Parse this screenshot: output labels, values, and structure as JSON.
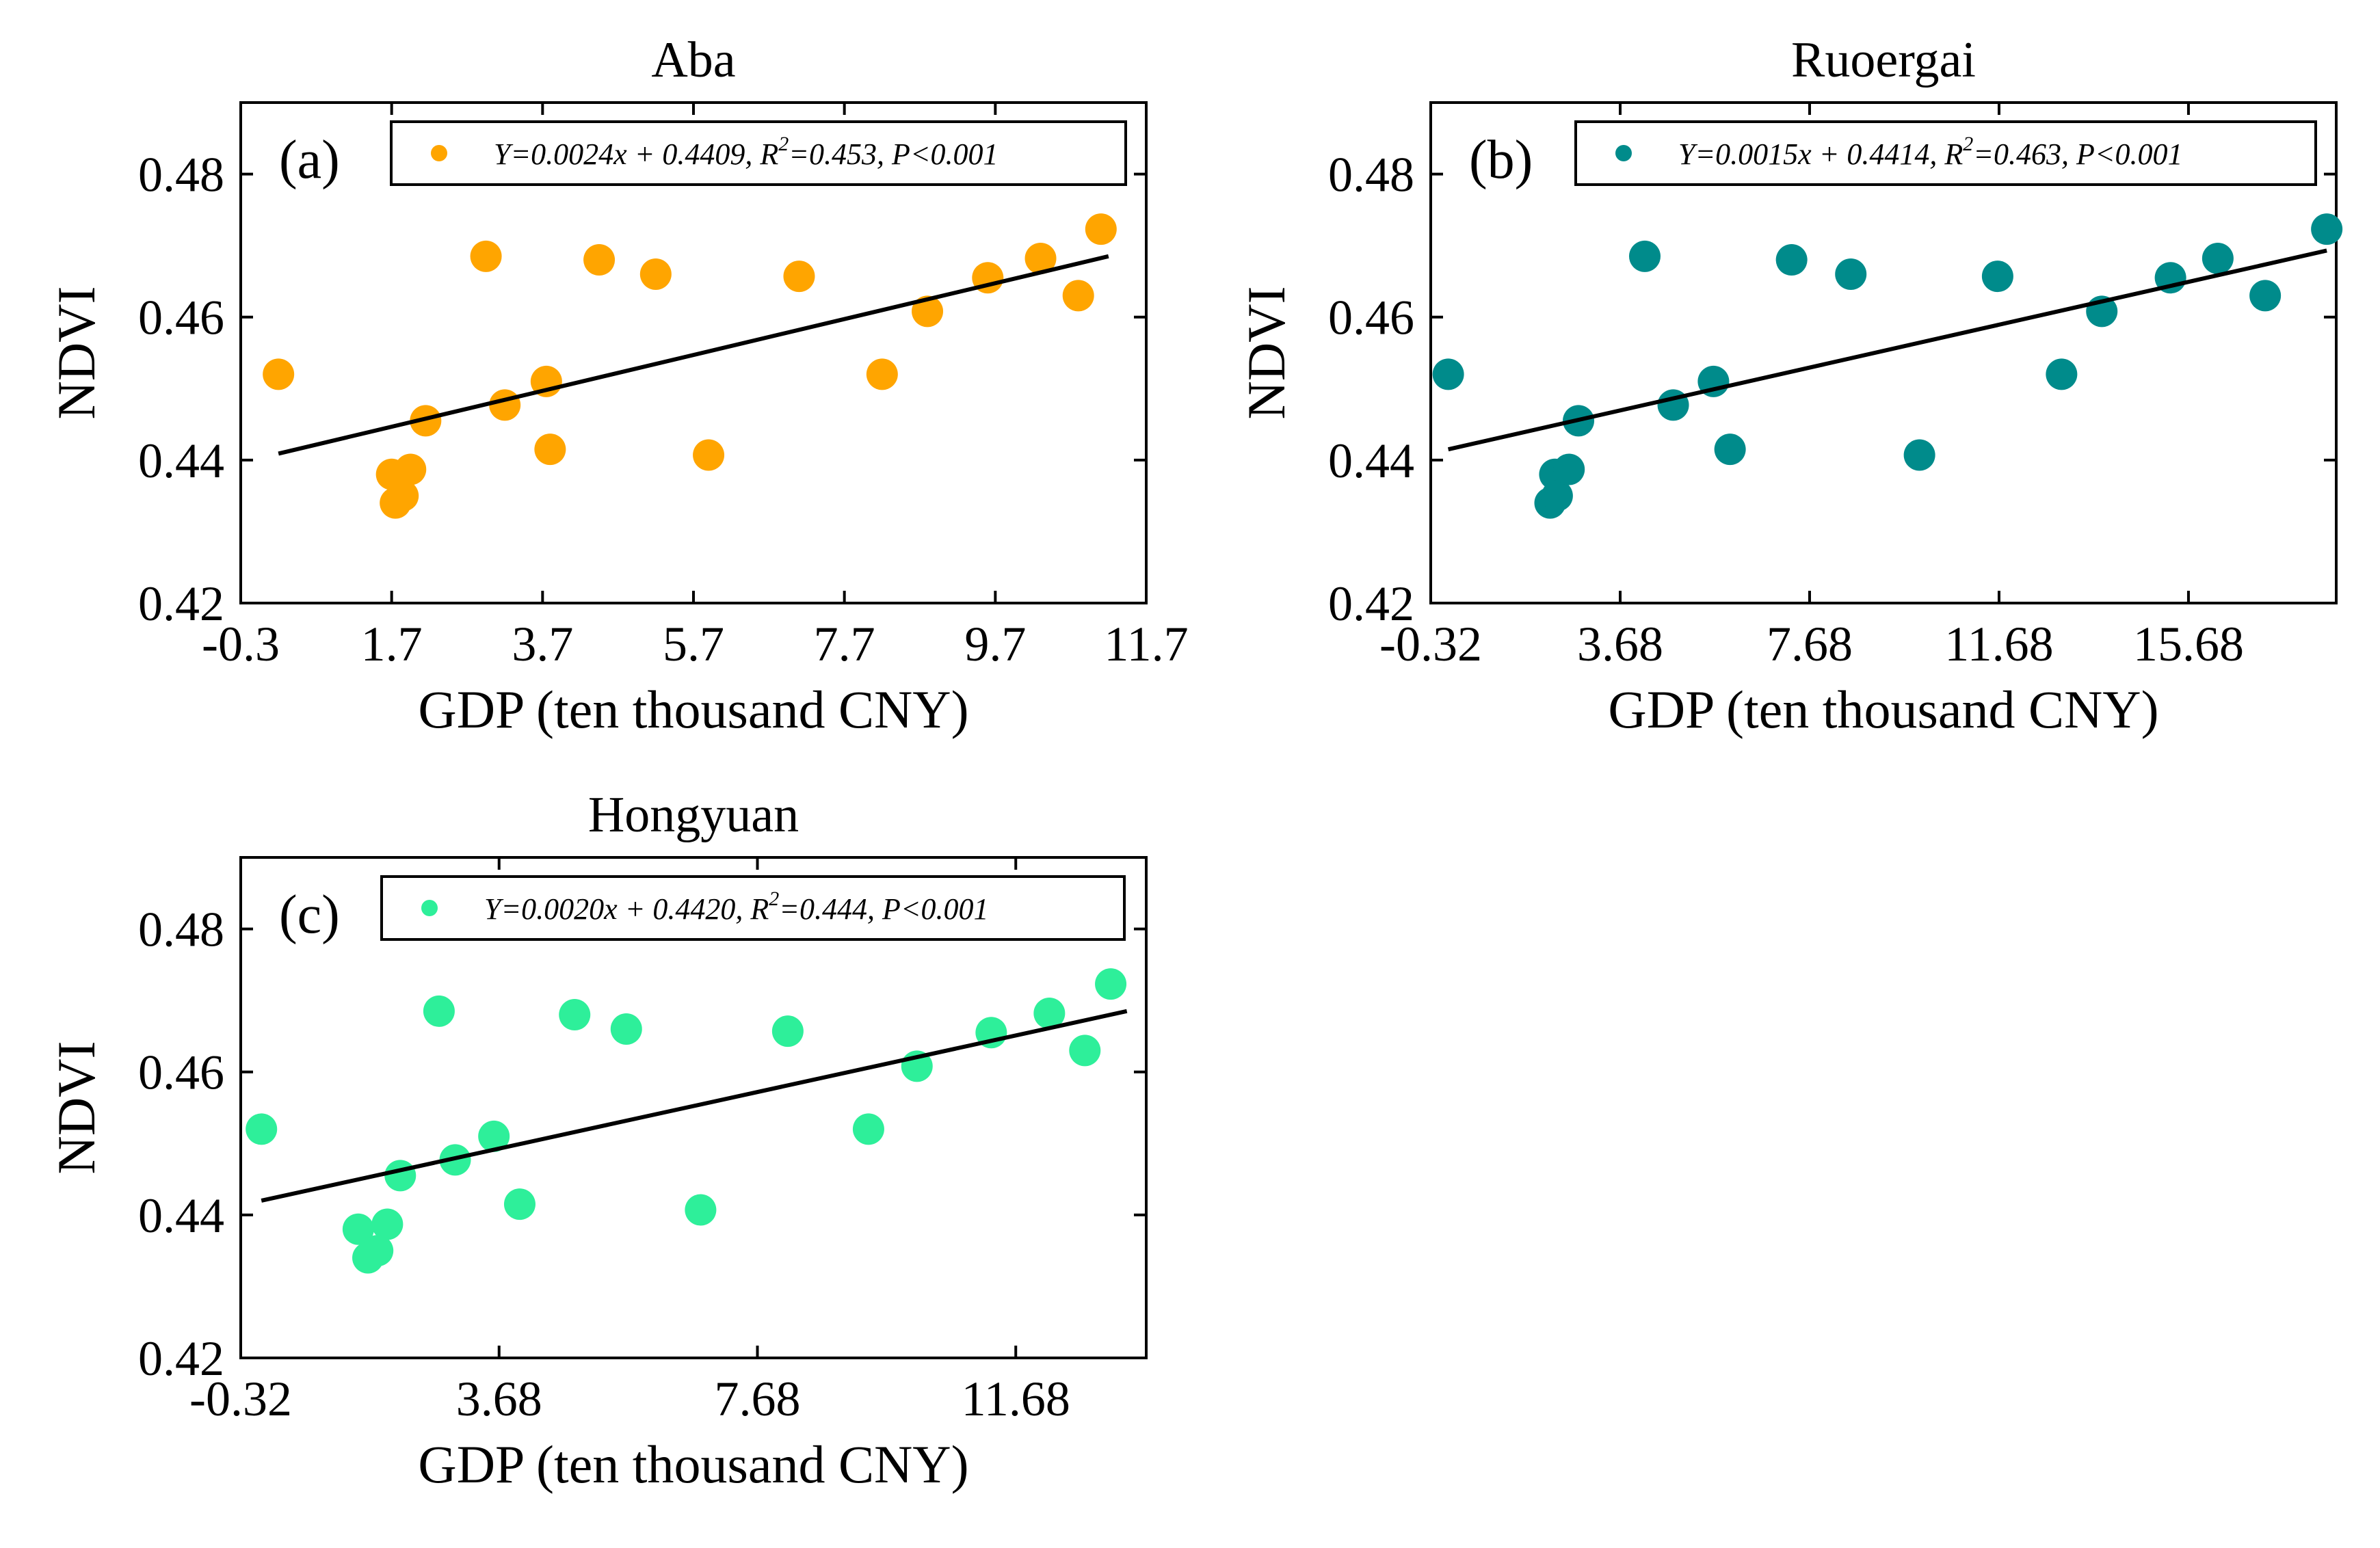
{
  "chart_data": [
    {
      "type": "scatter",
      "panel_label": "(a)",
      "title": "Aba",
      "xlabel": "GDP (ten thousand CNY)",
      "ylabel": "NDVI",
      "xlim": [
        -0.3,
        11.7
      ],
      "ylim": [
        0.42,
        0.49
      ],
      "xticks": [
        -0.3,
        1.7,
        3.7,
        5.7,
        7.7,
        9.7,
        11.7
      ],
      "xtick_labels": [
        "-0.3",
        "1.7",
        "3.7",
        "5.7",
        "7.7",
        "9.7",
        "11.7"
      ],
      "yticks": [
        0.42,
        0.44,
        0.46,
        0.48
      ],
      "ytick_labels": [
        "0.42",
        "0.44",
        "0.46",
        "0.48"
      ],
      "color": "#FFA500",
      "legend_location": "top-right",
      "legend": {
        "eq_prefix": "Y=0.0024x + 0.4409, R",
        "sup": "2",
        "eq_suffix": "=0.453, P<0.001"
      },
      "fit": {
        "slope": 0.0024,
        "intercept": 0.4409,
        "x_range": [
          0.2,
          11.2
        ],
        "y_range": [
          0.4409,
          0.4685
        ]
      },
      "points": [
        {
          "x": 0.2,
          "y": 0.452
        },
        {
          "x": 1.7,
          "y": 0.438
        },
        {
          "x": 1.75,
          "y": 0.434
        },
        {
          "x": 1.85,
          "y": 0.435
        },
        {
          "x": 1.95,
          "y": 0.4387
        },
        {
          "x": 2.15,
          "y": 0.4455
        },
        {
          "x": 2.95,
          "y": 0.4685
        },
        {
          "x": 3.2,
          "y": 0.4477
        },
        {
          "x": 3.75,
          "y": 0.451
        },
        {
          "x": 3.8,
          "y": 0.4415
        },
        {
          "x": 4.45,
          "y": 0.468
        },
        {
          "x": 5.2,
          "y": 0.466
        },
        {
          "x": 5.9,
          "y": 0.4407
        },
        {
          "x": 7.1,
          "y": 0.4657
        },
        {
          "x": 8.2,
          "y": 0.452
        },
        {
          "x": 8.8,
          "y": 0.4608
        },
        {
          "x": 9.6,
          "y": 0.4655
        },
        {
          "x": 10.3,
          "y": 0.4682
        },
        {
          "x": 10.8,
          "y": 0.463
        },
        {
          "x": 11.1,
          "y": 0.4723
        }
      ]
    },
    {
      "type": "scatter",
      "panel_label": "(b)",
      "title": "Ruoergai",
      "xlabel": "GDP (ten thousand CNY)",
      "ylabel": "NDVI",
      "xlim": [
        -0.32,
        18.8
      ],
      "ylim": [
        0.42,
        0.49
      ],
      "xticks": [
        -0.32,
        3.68,
        7.68,
        11.68,
        15.68
      ],
      "xtick_labels": [
        "-0.32",
        "3.68",
        "7.68",
        "11.68",
        "15.68"
      ],
      "yticks": [
        0.42,
        0.44,
        0.46,
        0.48
      ],
      "ytick_labels": [
        "0.42",
        "0.44",
        "0.46",
        "0.48"
      ],
      "color": "#008B8B",
      "legend_location": "top-right",
      "legend": {
        "eq_prefix": "Y=0.0015x + 0.4414, R",
        "sup": "2",
        "eq_suffix": "=0.463, P<0.001"
      },
      "fit": {
        "slope": 0.0015,
        "intercept": 0.4414,
        "x_range": [
          0.05,
          18.6
        ],
        "y_range": [
          0.4415,
          0.4693
        ]
      },
      "points": [
        {
          "x": 0.05,
          "y": 0.452
        },
        {
          "x": 2.2,
          "y": 0.434
        },
        {
          "x": 2.3,
          "y": 0.438
        },
        {
          "x": 2.35,
          "y": 0.435
        },
        {
          "x": 2.6,
          "y": 0.4387
        },
        {
          "x": 2.8,
          "y": 0.4455
        },
        {
          "x": 4.2,
          "y": 0.4685
        },
        {
          "x": 4.8,
          "y": 0.4477
        },
        {
          "x": 5.65,
          "y": 0.451
        },
        {
          "x": 6.0,
          "y": 0.4415
        },
        {
          "x": 7.3,
          "y": 0.468
        },
        {
          "x": 8.55,
          "y": 0.466
        },
        {
          "x": 10.0,
          "y": 0.4407
        },
        {
          "x": 11.65,
          "y": 0.4657
        },
        {
          "x": 13.0,
          "y": 0.452
        },
        {
          "x": 13.85,
          "y": 0.4608
        },
        {
          "x": 15.3,
          "y": 0.4655
        },
        {
          "x": 16.3,
          "y": 0.4682
        },
        {
          "x": 17.3,
          "y": 0.463
        },
        {
          "x": 18.6,
          "y": 0.4723
        }
      ]
    },
    {
      "type": "scatter",
      "panel_label": "(c)",
      "title": "Hongyuan",
      "xlabel": "GDP (ten thousand CNY)",
      "ylabel": "NDVI",
      "xlim": [
        -0.32,
        13.7
      ],
      "ylim": [
        0.42,
        0.49
      ],
      "xticks": [
        -0.32,
        3.68,
        7.68,
        11.68
      ],
      "xtick_labels": [
        "-0.32",
        "3.68",
        "7.68",
        "11.68"
      ],
      "yticks": [
        0.42,
        0.44,
        0.46,
        0.48
      ],
      "ytick_labels": [
        "0.42",
        "0.44",
        "0.46",
        "0.48"
      ],
      "color": "#2EEF9A",
      "legend_location": "top-right",
      "legend": {
        "eq_prefix": "Y=0.0020x + 0.4420, R",
        "sup": "2",
        "eq_suffix": "=0.444, P<0.001"
      },
      "fit": {
        "slope": 0.002,
        "intercept": 0.442,
        "x_range": [
          0.0,
          13.4
        ],
        "y_range": [
          0.442,
          0.4685
        ]
      },
      "points": [
        {
          "x": 0.0,
          "y": 0.452
        },
        {
          "x": 1.5,
          "y": 0.438
        },
        {
          "x": 1.65,
          "y": 0.434
        },
        {
          "x": 1.8,
          "y": 0.435
        },
        {
          "x": 1.95,
          "y": 0.4387
        },
        {
          "x": 2.15,
          "y": 0.4455
        },
        {
          "x": 2.75,
          "y": 0.4685
        },
        {
          "x": 3.0,
          "y": 0.4477
        },
        {
          "x": 3.6,
          "y": 0.451
        },
        {
          "x": 4.0,
          "y": 0.4415
        },
        {
          "x": 4.85,
          "y": 0.468
        },
        {
          "x": 5.65,
          "y": 0.466
        },
        {
          "x": 6.8,
          "y": 0.4407
        },
        {
          "x": 8.15,
          "y": 0.4657
        },
        {
          "x": 9.4,
          "y": 0.452
        },
        {
          "x": 10.15,
          "y": 0.4608
        },
        {
          "x": 11.3,
          "y": 0.4655
        },
        {
          "x": 12.2,
          "y": 0.4682
        },
        {
          "x": 12.75,
          "y": 0.463
        },
        {
          "x": 13.15,
          "y": 0.4723
        }
      ]
    }
  ]
}
